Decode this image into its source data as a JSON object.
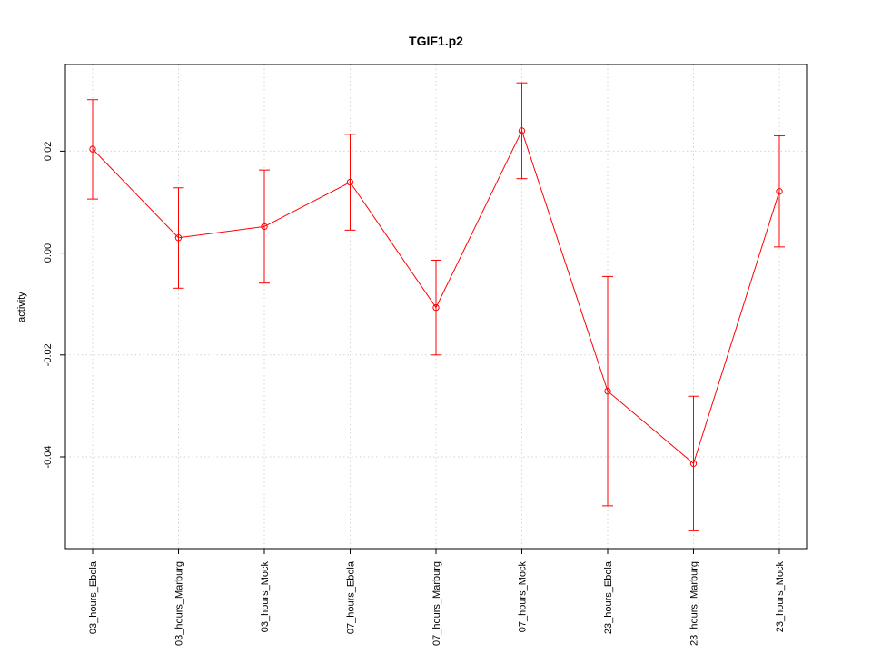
{
  "chart_data": {
    "type": "line",
    "title": "TGIF1.p2",
    "ylabel": "activity",
    "xlabel": "",
    "categories": [
      "03_hours_Ebola",
      "03_hours_Marburg",
      "03_hours_Mock",
      "07_hours_Ebola",
      "07_hours_Marburg",
      "07_hours_Mock",
      "23_hours_Ebola",
      "23_hours_Marburg",
      "23_hours_Mock"
    ],
    "series": [
      {
        "values": [
          0.0204,
          0.003,
          0.0052,
          0.0139,
          -0.0107,
          0.024,
          -0.0271,
          -0.0413,
          0.0121
        ],
        "upper": [
          0.0301,
          0.0128,
          0.0163,
          0.0233,
          -0.0014,
          0.0334,
          -0.0046,
          -0.0281,
          0.023
        ],
        "lower": [
          0.0106,
          -0.0069,
          -0.0059,
          0.0045,
          -0.02,
          0.0146,
          -0.0496,
          -0.0545,
          0.0012
        ]
      }
    ],
    "ylim": [
      -0.058,
      0.037
    ],
    "yticks": [
      -0.04,
      -0.02,
      0.0,
      0.02
    ],
    "ytick_labels": [
      "-0.04",
      "-0.02",
      "0.00",
      "0.02"
    ],
    "grid": true,
    "colors": {
      "series": "#ff0000",
      "grid": "#d3d3d3",
      "frame": "#000000"
    }
  }
}
